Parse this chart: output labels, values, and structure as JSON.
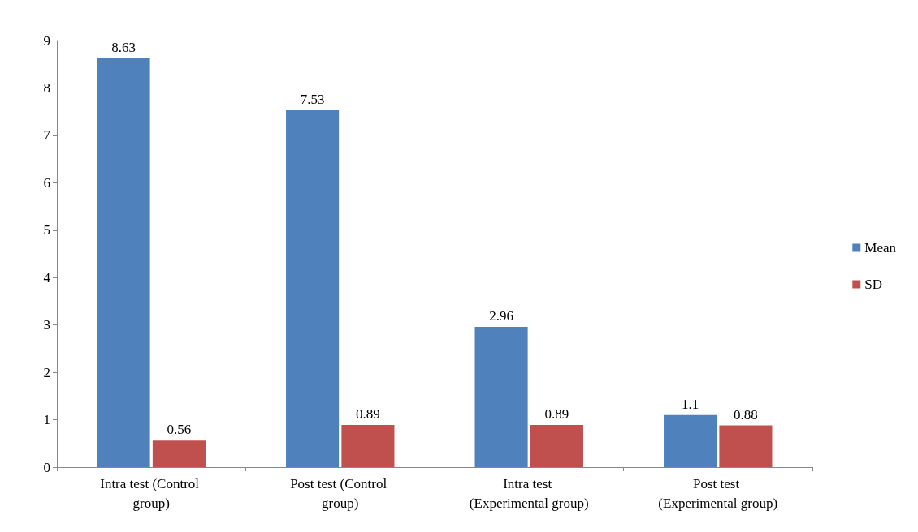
{
  "chart_data": {
    "type": "bar",
    "categories": [
      "Intra test (Control group)",
      "Post test (Control group)",
      "Intra test (Experimental group)",
      "Post test (Experimental group)"
    ],
    "series": [
      {
        "name": "Mean",
        "color": "#4f81bd",
        "values": [
          8.63,
          7.53,
          2.96,
          1.1
        ]
      },
      {
        "name": "SD",
        "color": "#c0504d",
        "values": [
          0.56,
          0.89,
          0.89,
          0.88
        ]
      }
    ],
    "ylim": [
      0,
      9
    ],
    "yticks": [
      0,
      1,
      2,
      3,
      4,
      5,
      6,
      7,
      8,
      9
    ],
    "data_labels": true,
    "legend": "right",
    "grid": false
  }
}
